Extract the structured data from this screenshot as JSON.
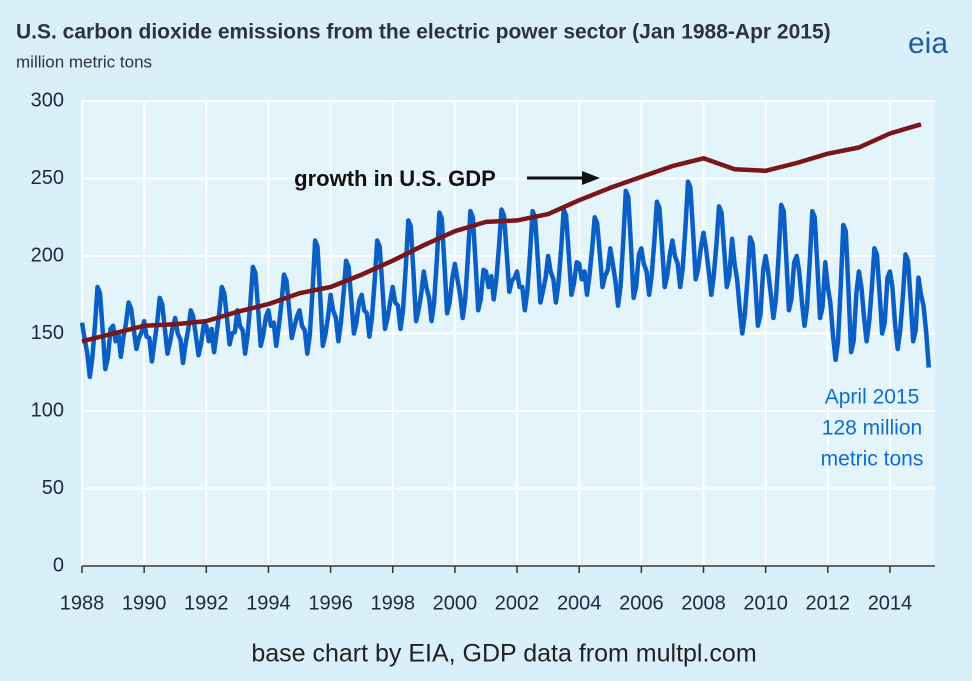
{
  "chart_data": {
    "type": "line",
    "title": "U.S. carbon dioxide emissions from the electric power sector (Jan 1988-Apr 2015)",
    "subtitle": "million metric tons",
    "logo": "eia",
    "source": "base chart by EIA, GDP data from multpl.com",
    "annotations": [
      {
        "text": "growth in U.S. GDP"
      },
      {
        "lines": [
          "April 2015",
          "128 million",
          "metric tons"
        ]
      }
    ],
    "xlim": [
      1988,
      2015.45
    ],
    "xticks": [
      1988,
      1990,
      1992,
      1994,
      1996,
      1998,
      2000,
      2002,
      2004,
      2006,
      2008,
      2010,
      2012,
      2014
    ],
    "ylim": [
      0,
      300
    ],
    "yticks": [
      0,
      50,
      100,
      150,
      200,
      250,
      300
    ],
    "grid": true,
    "series": [
      {
        "color": "#0b5fc4",
        "x": [
          1988,
          1988.08,
          1988.17,
          1988.25,
          1988.33,
          1988.42,
          1988.5,
          1988.58,
          1988.67,
          1988.75,
          1988.83,
          1988.92,
          1989,
          1989.08,
          1989.17,
          1989.25,
          1989.33,
          1989.42,
          1989.5,
          1989.58,
          1989.67,
          1989.75,
          1989.83,
          1989.92,
          1990,
          1990.08,
          1990.17,
          1990.25,
          1990.33,
          1990.42,
          1990.5,
          1990.58,
          1990.67,
          1990.75,
          1990.83,
          1990.92,
          1991,
          1991.08,
          1991.17,
          1991.25,
          1991.33,
          1991.42,
          1991.5,
          1991.58,
          1991.67,
          1991.75,
          1991.83,
          1991.92,
          1992,
          1992.08,
          1992.17,
          1992.25,
          1992.33,
          1992.42,
          1992.5,
          1992.58,
          1992.67,
          1992.75,
          1992.83,
          1992.92,
          1993,
          1993.08,
          1993.17,
          1993.25,
          1993.33,
          1993.42,
          1993.5,
          1993.58,
          1993.67,
          1993.75,
          1993.83,
          1993.92,
          1994,
          1994.08,
          1994.17,
          1994.25,
          1994.33,
          1994.42,
          1994.5,
          1994.58,
          1994.67,
          1994.75,
          1994.83,
          1994.92,
          1995,
          1995.08,
          1995.17,
          1995.25,
          1995.33,
          1995.42,
          1995.5,
          1995.58,
          1995.67,
          1995.75,
          1995.83,
          1995.92,
          1996,
          1996.08,
          1996.17,
          1996.25,
          1996.33,
          1996.42,
          1996.5,
          1996.58,
          1996.67,
          1996.75,
          1996.83,
          1996.92,
          1997,
          1997.08,
          1997.17,
          1997.25,
          1997.33,
          1997.42,
          1997.5,
          1997.58,
          1997.67,
          1997.75,
          1997.83,
          1997.92,
          1998,
          1998.08,
          1998.17,
          1998.25,
          1998.33,
          1998.42,
          1998.5,
          1998.58,
          1998.67,
          1998.75,
          1998.83,
          1998.92,
          1999,
          1999.08,
          1999.17,
          1999.25,
          1999.33,
          1999.42,
          1999.5,
          1999.58,
          1999.67,
          1999.75,
          1999.83,
          1999.92,
          2000,
          2000.08,
          2000.17,
          2000.25,
          2000.33,
          2000.42,
          2000.5,
          2000.58,
          2000.67,
          2000.75,
          2000.83,
          2000.92,
          2001,
          2001.08,
          2001.17,
          2001.25,
          2001.33,
          2001.42,
          2001.5,
          2001.58,
          2001.67,
          2001.75,
          2001.83,
          2001.92,
          2002,
          2002.08,
          2002.17,
          2002.25,
          2002.33,
          2002.42,
          2002.5,
          2002.58,
          2002.67,
          2002.75,
          2002.83,
          2002.92,
          2003,
          2003.08,
          2003.17,
          2003.25,
          2003.33,
          2003.42,
          2003.5,
          2003.58,
          2003.67,
          2003.75,
          2003.83,
          2003.92,
          2004,
          2004.08,
          2004.17,
          2004.25,
          2004.33,
          2004.42,
          2004.5,
          2004.58,
          2004.67,
          2004.75,
          2004.83,
          2004.92,
          2005,
          2005.08,
          2005.17,
          2005.25,
          2005.33,
          2005.42,
          2005.5,
          2005.58,
          2005.67,
          2005.75,
          2005.83,
          2005.92,
          2006,
          2006.08,
          2006.17,
          2006.25,
          2006.33,
          2006.42,
          2006.5,
          2006.58,
          2006.67,
          2006.75,
          2006.83,
          2006.92,
          2007,
          2007.08,
          2007.17,
          2007.25,
          2007.33,
          2007.42,
          2007.5,
          2007.58,
          2007.67,
          2007.75,
          2007.83,
          2007.92,
          2008,
          2008.08,
          2008.17,
          2008.25,
          2008.33,
          2008.42,
          2008.5,
          2008.58,
          2008.67,
          2008.75,
          2008.83,
          2008.92,
          2009,
          2009.08,
          2009.17,
          2009.25,
          2009.33,
          2009.42,
          2009.5,
          2009.58,
          2009.67,
          2009.75,
          2009.83,
          2009.92,
          2010,
          2010.08,
          2010.17,
          2010.25,
          2010.33,
          2010.42,
          2010.5,
          2010.58,
          2010.67,
          2010.75,
          2010.83,
          2010.92,
          2011,
          2011.08,
          2011.17,
          2011.25,
          2011.33,
          2011.42,
          2011.5,
          2011.58,
          2011.67,
          2011.75,
          2011.83,
          2011.92,
          2012,
          2012.08,
          2012.17,
          2012.25,
          2012.33,
          2012.42,
          2012.5,
          2012.58,
          2012.67,
          2012.75,
          2012.83,
          2012.92,
          2013,
          2013.08,
          2013.17,
          2013.25,
          2013.33,
          2013.42,
          2013.5,
          2013.58,
          2013.67,
          2013.75,
          2013.83,
          2013.92,
          2014,
          2014.08,
          2014.17,
          2014.25,
          2014.33,
          2014.42,
          2014.5,
          2014.58,
          2014.67,
          2014.75,
          2014.83,
          2014.92,
          2015,
          2015.08,
          2015.17,
          2015.25
        ],
        "values": [
          157,
          147,
          137,
          122,
          134,
          156,
          180,
          176,
          151,
          127,
          134,
          153,
          155,
          145,
          150,
          135,
          147,
          157,
          170,
          166,
          152,
          140,
          147,
          151,
          158,
          148,
          147,
          132,
          144,
          157,
          173,
          169,
          152,
          137,
          144,
          154,
          160,
          150,
          146,
          131,
          143,
          153,
          165,
          161,
          148,
          136,
          143,
          156,
          155,
          145,
          153,
          138,
          150,
          164,
          180,
          176,
          159,
          143,
          150,
          151,
          165,
          155,
          152,
          137,
          149,
          170,
          193,
          189,
          165,
          142,
          149,
          161,
          165,
          155,
          157,
          142,
          154,
          170,
          188,
          184,
          165,
          147,
          154,
          161,
          165,
          155,
          152,
          137,
          149,
          178,
          210,
          206,
          173,
          142,
          149,
          161,
          175,
          165,
          160,
          145,
          157,
          176,
          197,
          193,
          171,
          150,
          157,
          171,
          175,
          165,
          163,
          148,
          160,
          184,
          210,
          206,
          179,
          153,
          160,
          171,
          180,
          170,
          168,
          153,
          165,
          193,
          223,
          219,
          188,
          158,
          165,
          176,
          190,
          180,
          173,
          158,
          170,
          198,
          228,
          224,
          193,
          163,
          170,
          186,
          195,
          185,
          175,
          160,
          172,
          199,
          229,
          225,
          194,
          165,
          172,
          191,
          190,
          180,
          187,
          172,
          184,
          206,
          230,
          226,
          201,
          177,
          184,
          186,
          190,
          180,
          180,
          165,
          177,
          202,
          229,
          225,
          197,
          170,
          177,
          186,
          200,
          190,
          185,
          170,
          182,
          205,
          230,
          226,
          200,
          175,
          182,
          196,
          195,
          185,
          190,
          175,
          187,
          205,
          225,
          221,
          200,
          180,
          187,
          191,
          205,
          195,
          183,
          168,
          180,
          210,
          242,
          238,
          205,
          173,
          180,
          201,
          205,
          195,
          190,
          175,
          187,
          210,
          235,
          231,
          205,
          180,
          187,
          201,
          210,
          200,
          195,
          180,
          192,
          219,
          248,
          244,
          214,
          185,
          192,
          206,
          215,
          205,
          190,
          175,
          187,
          208,
          232,
          228,
          203,
          180,
          187,
          211,
          195,
          185,
          165,
          150,
          162,
          186,
          212,
          208,
          181,
          155,
          162,
          191,
          200,
          190,
          175,
          160,
          172,
          201,
          233,
          229,
          196,
          165,
          172,
          196,
          200,
          190,
          170,
          155,
          167,
          197,
          229,
          225,
          192,
          160,
          167,
          196,
          180,
          170,
          148,
          133,
          145,
          181,
          220,
          216,
          176,
          138,
          145,
          176,
          190,
          180,
          160,
          145,
          157,
          180,
          205,
          201,
          175,
          150,
          157,
          186,
          190,
          180,
          155,
          140,
          152,
          175,
          201,
          197,
          170,
          145,
          152,
          186,
          175,
          168,
          150,
          128
        ]
      },
      {
        "color": "#7a1518",
        "x": [
          1988,
          1989,
          1990,
          1991,
          1992,
          1993,
          1994,
          1995,
          1996,
          1997,
          1998,
          1999,
          2000,
          2001,
          2002,
          2003,
          2004,
          2005,
          2006,
          2007,
          2008,
          2009,
          2010,
          2011,
          2012,
          2013,
          2014,
          2015
        ],
        "values": [
          145,
          150,
          155,
          156,
          158,
          164,
          169,
          176,
          180,
          188,
          197,
          207,
          216,
          222,
          223,
          227,
          236,
          244,
          251,
          258,
          263,
          256,
          255,
          260,
          266,
          270,
          279,
          285
        ]
      }
    ]
  }
}
